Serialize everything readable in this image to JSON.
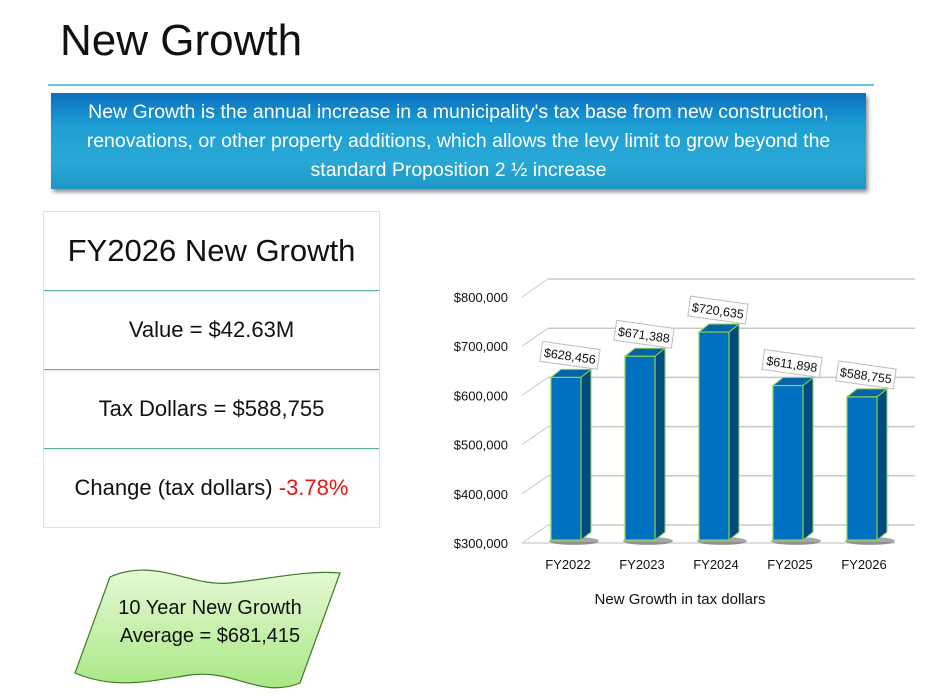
{
  "page": {
    "title": "New Growth",
    "banner_text": "New Growth is the annual increase in a municipality's tax base from new construction, renovations, or other property additions, which allows the levy limit to grow beyond the standard Proposition 2 ½ increase"
  },
  "stats": {
    "heading": "FY2026 New Growth",
    "value_line": "Value = $42.63M",
    "tax_line": "Tax Dollars = $588,755",
    "change_label": "Change (tax dollars)",
    "change_value": "-3.78%",
    "change_color": "#ee1111"
  },
  "callout": {
    "line1": "10 Year New Growth",
    "line2": "Average = $681,415"
  },
  "chart_data": {
    "type": "bar",
    "title": "",
    "xlabel": "New Growth in tax dollars",
    "ylabel": "",
    "categories": [
      "FY2022",
      "FY2023",
      "FY2024",
      "FY2025",
      "FY2026"
    ],
    "values": [
      628456,
      671388,
      720635,
      611898,
      588755
    ],
    "data_labels": [
      "$628,456",
      "$671,388",
      "$720,635",
      "$611,898",
      "$588,755"
    ],
    "ylim": [
      300000,
      800000
    ],
    "yticks": [
      300000,
      400000,
      500000,
      600000,
      700000,
      800000
    ],
    "ytick_labels": [
      "$300,000",
      "$400,000",
      "$500,000",
      "$600,000",
      "$700,000",
      "$800,000"
    ],
    "grid": true,
    "legend": "none",
    "bar_color": "#0070c0",
    "bar_side_color": "#024b80",
    "bar_outline_color": "#8fd14f"
  }
}
